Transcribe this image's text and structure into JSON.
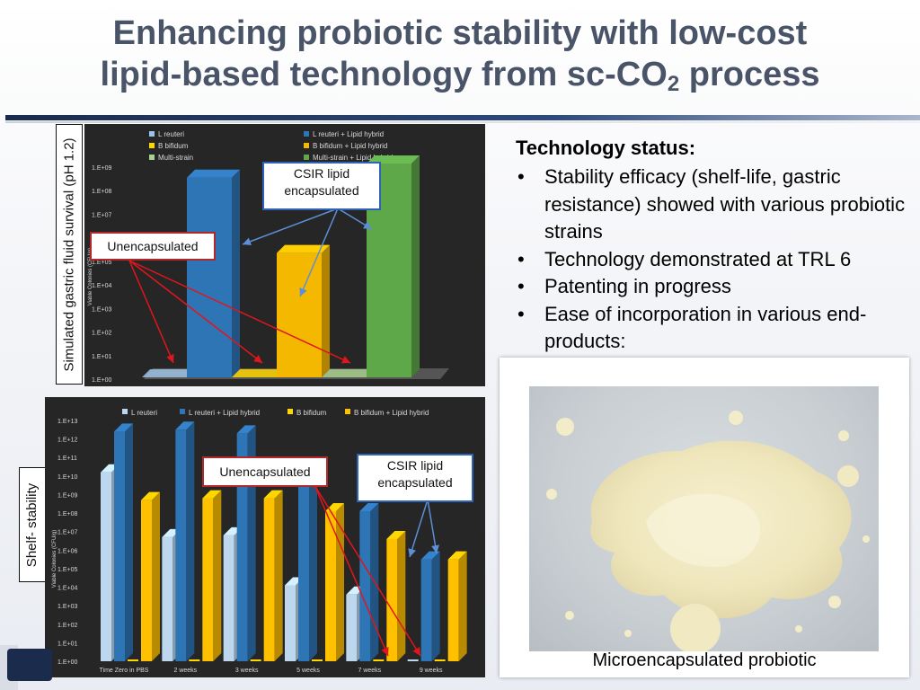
{
  "title": {
    "line1": "Enhancing probiotic stability with low-cost",
    "line2_main": "lipid-based technology from sc-CO",
    "line2_sub": "2",
    "line2_end": " process"
  },
  "chart1_label": "Simulated gastric fluid survival (pH 1.2)",
  "chart2_label": "Shelf- stability",
  "callouts": {
    "c1_unenc": "Unencapsulated",
    "c1_csir_l1": "CSIR lipid",
    "c1_csir_l2": "encapsulated",
    "c2_unenc": "Unencapsulated",
    "c2_csir_l1": "CSIR lipid",
    "c2_csir_l2": "encapsulated"
  },
  "status": {
    "heading": "Technology status:",
    "items": [
      "Stability efficacy (shelf-life, gastric resistance) showed with various probiotic strains",
      "Technology demonstrated at TRL 6",
      "Patenting in progress",
      "Ease of incorporation in various end-products:"
    ]
  },
  "photo_caption": "Microencapsulated probiotic",
  "chart_data": [
    {
      "type": "bar",
      "ylabel": "Viable Colonies (CFU/g)",
      "y_ticks": [
        "1.E+00",
        "1.E+01",
        "1.E+02",
        "1.E+03",
        "1.E+04",
        "1.E+05",
        "1.E+06",
        "1.E+07",
        "1.E+08",
        "1.E+09"
      ],
      "ylim_log10": [
        0,
        9
      ],
      "legend": [
        {
          "name": "L reuteri",
          "color": "#9dc3e6"
        },
        {
          "name": "L reuteri + Lipid hybrid",
          "color": "#2e75b6"
        },
        {
          "name": "B bifidum",
          "color": "#ffd700"
        },
        {
          "name": "B bifidum + Lipid hybrid",
          "color": "#f5b800"
        },
        {
          "name": "Multi-strain",
          "color": "#a9d18e"
        },
        {
          "name": "Multi-strain + Lipid hybrid",
          "color": "#5fa84a"
        }
      ],
      "values_log10": [
        0,
        8.4,
        0,
        5.2,
        0,
        9.0
      ]
    },
    {
      "type": "bar",
      "ylabel": "Viable Colonies (CFU/g)",
      "categories": [
        "Time Zero in PBS",
        "2 weeks",
        "3 weeks",
        "5 weeks",
        "7 weeks",
        "9 weeks"
      ],
      "y_ticks": [
        "1.E+00",
        "1.E+01",
        "1.E+02",
        "1.E+03",
        "1.E+04",
        "1.E+05",
        "1.E+06",
        "1.E+07",
        "1.E+08",
        "1.E+09",
        "1.E+10",
        "1.E+11",
        "1.E+12",
        "1.E+13"
      ],
      "ylim_log10": [
        0,
        13
      ],
      "series": [
        {
          "name": "L reuteri",
          "color": "#bdd7ee",
          "values_log10": [
            10.2,
            6.7,
            6.8,
            4.1,
            3.6,
            0
          ]
        },
        {
          "name": "L reuteri + Lipid hybrid",
          "color": "#2e75b6",
          "values_log10": [
            12.4,
            12.5,
            12.3,
            9.7,
            8.1,
            5.5
          ]
        },
        {
          "name": "B bifidum",
          "color": "#ffd700",
          "values_log10": [
            0,
            0,
            0,
            0,
            0,
            0
          ]
        },
        {
          "name": "B bifidum + Lipid hybrid",
          "color": "#ffc000",
          "values_log10": [
            8.7,
            8.8,
            8.8,
            8.1,
            6.6,
            5.5
          ]
        }
      ]
    }
  ]
}
